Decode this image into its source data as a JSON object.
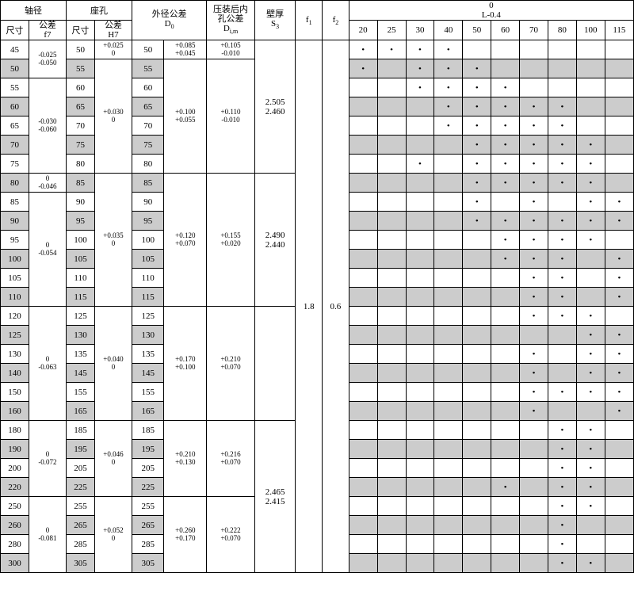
{
  "headers": {
    "shaft_dia": "轴径",
    "bore": "座孔",
    "size": "尺寸",
    "tol_f7": "公差<br>f7",
    "tol_H7": "公差<br>H7",
    "od_tol": "外径公差<br>D<sub>0</sub>",
    "press_bore_tol": "压装后内<br>孔公差<br>D<sub>i,m</sub>",
    "wall": "壁厚<br>S<sub>3</sub>",
    "f1": "f<sub>1</sub>",
    "f2": "f<sub>2</sub>",
    "L": "0<br>L-0.4",
    "cols": [
      "20",
      "25",
      "30",
      "40",
      "50",
      "60",
      "70",
      "80",
      "100",
      "115"
    ]
  },
  "constants": {
    "f1": "1.8",
    "f2": "0.6"
  },
  "groups": [
    {
      "tol_f7": "-0.025<br>-0.050",
      "tol_H7": "+0.025<br>0",
      "D0": "50",
      "D0_tol": "+0.085<br>+0.045",
      "Di_tol": "+0.105<br>-0.010",
      "wall": "",
      "rows": [
        {
          "d": "45",
          "D": "50",
          "gray": 0,
          "dots": [
            1,
            1,
            1,
            1,
            0,
            0,
            0,
            0,
            0,
            0
          ]
        }
      ]
    },
    {
      "tol_f7": "-0.030<br>-0.060",
      "tol_H7": "+0.030<br>0",
      "D0_tol": "+0.100<br>+0.055",
      "Di_tol": "+0.110<br>-0.010",
      "wall": "2.505<br>2.460",
      "rows": [
        {
          "d": "50",
          "D": "55",
          "gray": 1,
          "dots": [
            1,
            0,
            1,
            1,
            1,
            0,
            0,
            0,
            0,
            0
          ]
        },
        {
          "d": "55",
          "D": "60",
          "gray": 0,
          "dots": [
            0,
            0,
            1,
            1,
            1,
            1,
            0,
            0,
            0,
            0
          ]
        },
        {
          "d": "60",
          "D": "65",
          "gray": 1,
          "dots": [
            0,
            0,
            0,
            1,
            1,
            1,
            1,
            1,
            0,
            0
          ]
        },
        {
          "d": "65",
          "D": "70",
          "gray": 0,
          "dots": [
            0,
            0,
            0,
            1,
            1,
            1,
            1,
            1,
            0,
            0
          ]
        },
        {
          "d": "70",
          "D": "75",
          "gray": 1,
          "dots": [
            0,
            0,
            0,
            0,
            1,
            1,
            1,
            1,
            1,
            0
          ]
        },
        {
          "d": "75",
          "D": "80",
          "gray": 0,
          "dots": [
            0,
            0,
            1,
            0,
            1,
            1,
            1,
            1,
            1,
            0
          ]
        }
      ]
    },
    {
      "tol_f7_a": "0<br>-0.046",
      "tol_f7_b": "0<br>-0.054",
      "tol_H7": "+0.035<br>0",
      "D0_tol": "+0.120<br>+0.070",
      "Di_tol": "+0.155<br>+0.020",
      "wall": "2.490<br>2.440",
      "rows": [
        {
          "d": "80",
          "D": "85",
          "gray": 1,
          "dots": [
            0,
            0,
            0,
            0,
            1,
            1,
            1,
            1,
            1,
            0
          ]
        },
        {
          "d": "85",
          "D": "90",
          "gray": 0,
          "dots": [
            0,
            0,
            0,
            0,
            1,
            0,
            1,
            0,
            1,
            1
          ]
        },
        {
          "d": "90",
          "D": "95",
          "gray": 1,
          "dots": [
            0,
            0,
            0,
            0,
            1,
            1,
            1,
            1,
            1,
            1
          ]
        },
        {
          "d": "95",
          "D": "100",
          "gray": 0,
          "dots": [
            0,
            0,
            0,
            0,
            0,
            1,
            1,
            1,
            1,
            0
          ]
        },
        {
          "d": "100",
          "D": "105",
          "gray": 1,
          "dots": [
            0,
            0,
            0,
            0,
            0,
            1,
            1,
            1,
            0,
            1
          ]
        },
        {
          "d": "105",
          "D": "110",
          "gray": 0,
          "dots": [
            0,
            0,
            0,
            0,
            0,
            0,
            1,
            1,
            0,
            1
          ]
        },
        {
          "d": "110",
          "D": "115",
          "gray": 1,
          "dots": [
            0,
            0,
            0,
            0,
            0,
            0,
            1,
            1,
            0,
            1
          ]
        }
      ]
    },
    {
      "tol_f7": "0<br>-0.063",
      "tol_H7": "+0.040<br>0",
      "D0_tol": "+0.170<br>+0.100",
      "Di_tol": "+0.210<br>+0.070",
      "wall": "",
      "rows": [
        {
          "d": "120",
          "D": "125",
          "gray": 0,
          "dots": [
            0,
            0,
            0,
            0,
            0,
            0,
            1,
            1,
            1,
            0
          ]
        },
        {
          "d": "125",
          "D": "130",
          "gray": 1,
          "dots": [
            0,
            0,
            0,
            0,
            0,
            0,
            0,
            0,
            1,
            1
          ]
        },
        {
          "d": "130",
          "D": "135",
          "gray": 0,
          "dots": [
            0,
            0,
            0,
            0,
            0,
            0,
            1,
            0,
            1,
            1
          ]
        },
        {
          "d": "140",
          "D": "145",
          "gray": 1,
          "dots": [
            0,
            0,
            0,
            0,
            0,
            0,
            1,
            0,
            1,
            1
          ]
        },
        {
          "d": "150",
          "D": "155",
          "gray": 0,
          "dots": [
            0,
            0,
            0,
            0,
            0,
            0,
            1,
            1,
            1,
            1
          ]
        },
        {
          "d": "160",
          "D": "165",
          "gray": 1,
          "dots": [
            0,
            0,
            0,
            0,
            0,
            0,
            1,
            0,
            0,
            1
          ]
        }
      ]
    },
    {
      "tol_f7": "0<br>-0.072",
      "tol_H7": "+0.046<br>0",
      "D0_tol": "+0.210<br>+0.130",
      "Di_tol": "+0.216<br>+0.070",
      "wall": "2.465<br>2.415",
      "rows": [
        {
          "d": "180",
          "D": "185",
          "gray": 0,
          "dots": [
            0,
            0,
            0,
            0,
            0,
            0,
            0,
            1,
            1,
            0
          ]
        },
        {
          "d": "190",
          "D": "195",
          "gray": 1,
          "dots": [
            0,
            0,
            0,
            0,
            0,
            0,
            0,
            1,
            1,
            0
          ]
        },
        {
          "d": "200",
          "D": "205",
          "gray": 0,
          "dots": [
            0,
            0,
            0,
            0,
            0,
            0,
            0,
            1,
            1,
            0
          ]
        },
        {
          "d": "220",
          "D": "225",
          "gray": 1,
          "dots": [
            0,
            0,
            0,
            0,
            0,
            1,
            0,
            1,
            1,
            0
          ]
        }
      ]
    },
    {
      "tol_f7": "0<br>-0.081",
      "tol_H7": "+0.052<br>0",
      "D0_tol": "+0.260<br>+0.170",
      "Di_tol": "+0.222<br>+0.070",
      "wall": "",
      "rows": [
        {
          "d": "250",
          "D": "255",
          "gray": 0,
          "dots": [
            0,
            0,
            0,
            0,
            0,
            0,
            0,
            1,
            1,
            0
          ]
        },
        {
          "d": "260",
          "D": "265",
          "gray": 1,
          "dots": [
            0,
            0,
            0,
            0,
            0,
            0,
            0,
            1,
            0,
            0
          ]
        },
        {
          "d": "280",
          "D": "285",
          "gray": 0,
          "dots": [
            0,
            0,
            0,
            0,
            0,
            0,
            0,
            1,
            0,
            0
          ]
        },
        {
          "d": "300",
          "D": "305",
          "gray": 1,
          "dots": [
            0,
            0,
            0,
            0,
            0,
            0,
            0,
            1,
            1,
            0
          ]
        }
      ]
    }
  ]
}
